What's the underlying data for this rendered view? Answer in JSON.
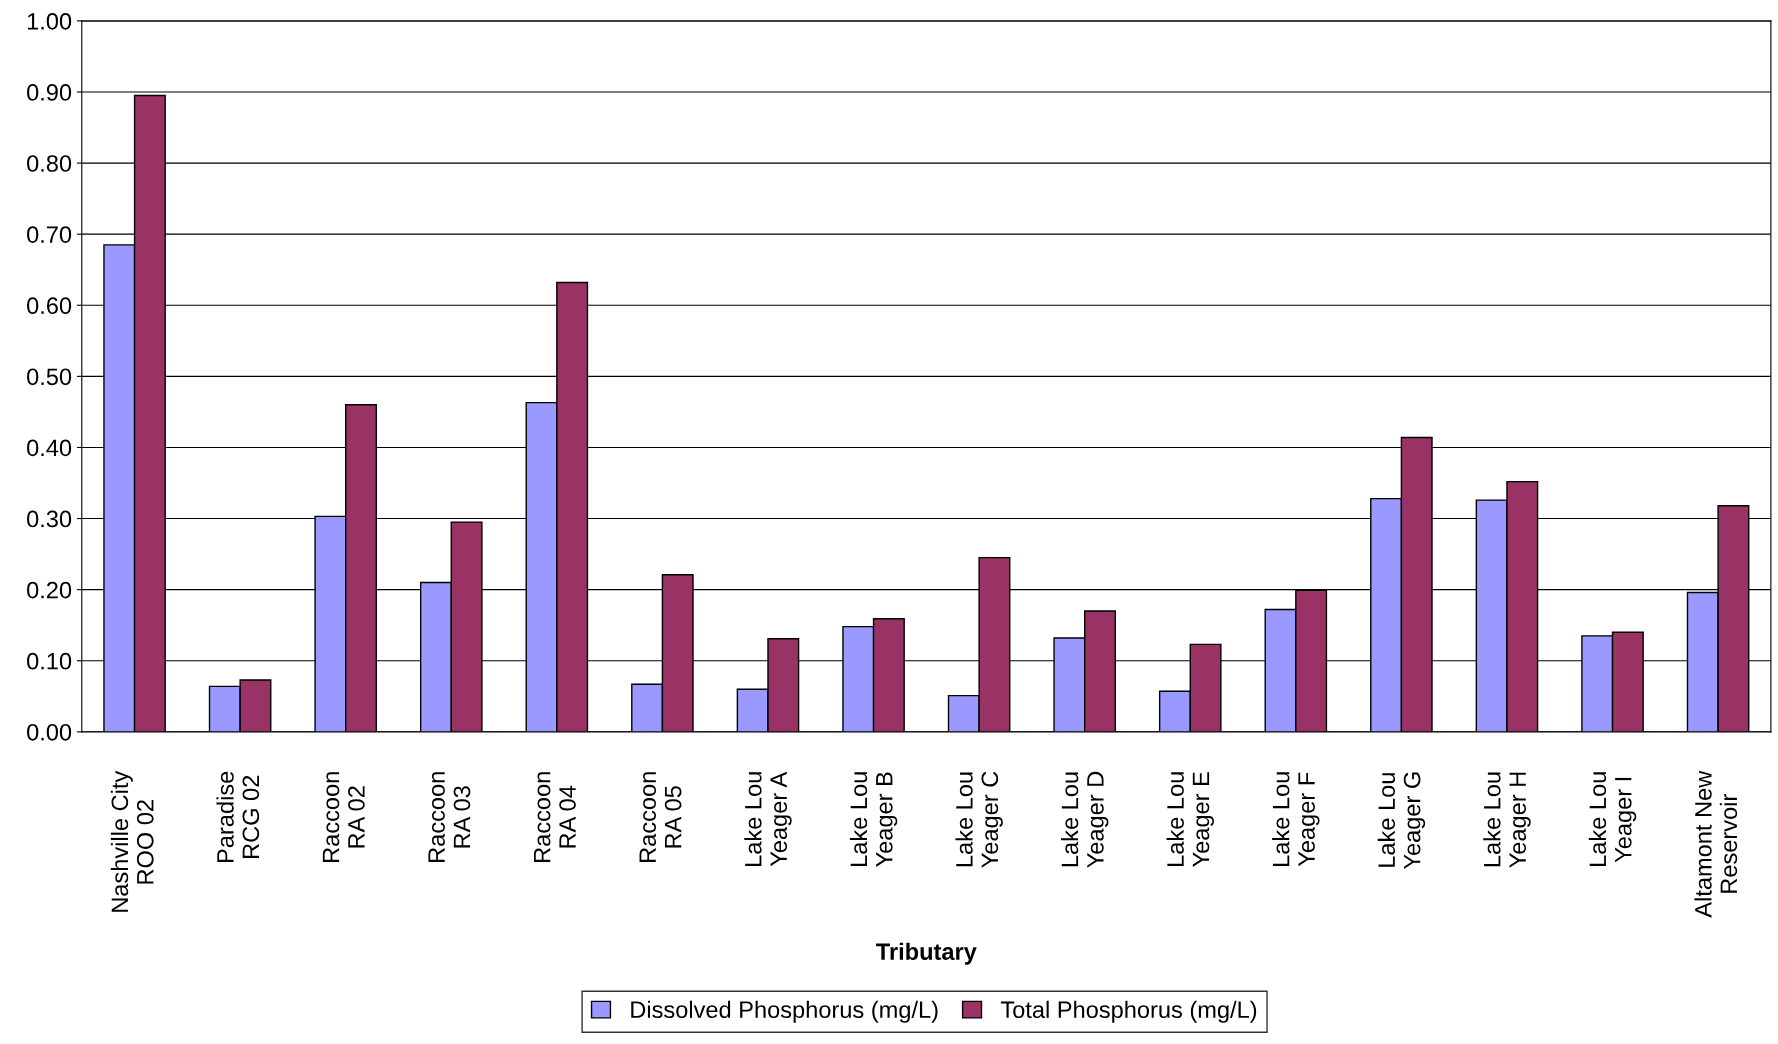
{
  "chart_data": {
    "type": "bar",
    "xlabel": "Tributary",
    "categories": [
      "Nashville City\nROO 02",
      "Paradise\nRCG 02",
      "Raccoon\nRA 02",
      "Raccoon\nRA 03",
      "Raccoon\nRA 04",
      "Raccoon\nRA 05",
      "Lake Lou\nYeager A",
      "Lake Lou\nYeager B",
      "Lake Lou\nYeager C",
      "Lake Lou\nYeager D",
      "Lake Lou\nYeager E",
      "Lake Lou\nYeager F",
      "Lake Lou\nYeager G",
      "Lake Lou\nYeager H",
      "Lake Lou\nYeager I",
      "Altamont New\nReservoir"
    ],
    "series": [
      {
        "name": "Dissolved Phosphorus (mg/L)",
        "color": "#9999ff",
        "values": [
          0.685,
          0.064,
          0.303,
          0.21,
          0.463,
          0.067,
          0.06,
          0.148,
          0.051,
          0.132,
          0.057,
          0.172,
          0.328,
          0.326,
          0.135,
          0.196
        ]
      },
      {
        "name": "Total Phosphorus (mg/L)",
        "color": "#993366",
        "values": [
          0.895,
          0.073,
          0.46,
          0.295,
          0.632,
          0.221,
          0.131,
          0.159,
          0.245,
          0.17,
          0.123,
          0.199,
          0.414,
          0.352,
          0.14,
          0.318
        ]
      }
    ],
    "ylim": [
      0,
      1
    ],
    "yticks": [
      {
        "value": 0,
        "label": "0.00"
      },
      {
        "value": 0.1,
        "label": "0.10"
      },
      {
        "value": 0.2,
        "label": "0.20"
      },
      {
        "value": 0.3,
        "label": "0.30"
      },
      {
        "value": 0.4,
        "label": "0.40"
      },
      {
        "value": 0.5,
        "label": "0.50"
      },
      {
        "value": 0.6,
        "label": "0.60"
      },
      {
        "value": 0.7,
        "label": "0.70"
      },
      {
        "value": 0.8,
        "label": "0.80"
      },
      {
        "value": 0.9,
        "label": "0.90"
      },
      {
        "value": 1,
        "label": "1.00"
      }
    ],
    "grid": "y",
    "legend": "bottom"
  }
}
